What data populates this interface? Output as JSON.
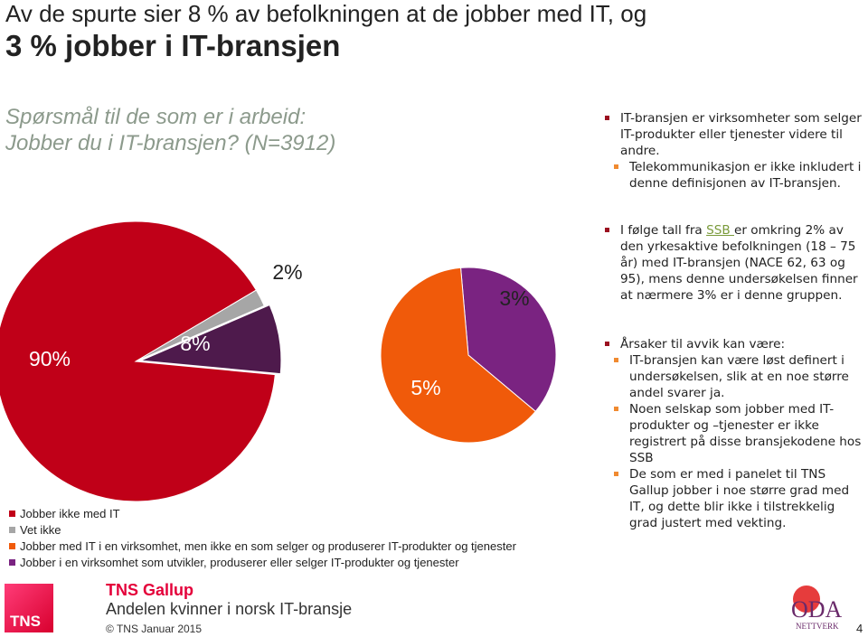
{
  "header": {
    "title_line1": "Av de spurte sier 8 % av befolkningen at de jobber med IT, og",
    "title_line2": "3 % jobber i IT-bransjen",
    "question_line1": "Spørsmål til de som er i arbeid:",
    "question_line2": "Jobber du i IT-bransjen? (N=3912)"
  },
  "chart_data": {
    "type": "pie",
    "categories": [
      "Jobber ikke med IT",
      "Vet ikke",
      "Jobber med IT i en virksomhet, men ikke en som selger og produserer IT-produkter og tjenester",
      "Jobber i en virksomhet som utvikler, produserer eller selger  IT-produkter og tjenester"
    ],
    "values": [
      90,
      2,
      5,
      3
    ],
    "value_labels": [
      "90%",
      "2%",
      "5%",
      "3%"
    ],
    "colors": [
      "#c00018",
      "#a6a6a6",
      "#f05a0a",
      "#7a2381"
    ],
    "group": {
      "value": 8,
      "label": "8%",
      "color": "#4e1a4c"
    }
  },
  "notes": [
    {
      "text": "IT-bransjen er virksomheter som selger IT-produkter eller tjenester videre til andre.",
      "sub": [
        "Telekommunikasjon er ikke inkludert i denne definisjonen av IT-bransjen."
      ]
    },
    {
      "text_before": "I følge tall fra ",
      "link": "SSB ",
      "text_after": "er omkring 2% av den yrkesaktive befolkningen (18 – 75 år) med IT-bransjen (NACE 62, 63 og 95), mens denne undersøkelsen finner at nærmere 3% er i denne gruppen."
    },
    {
      "text": "Årsaker til avvik kan være:",
      "sub": [
        "IT-bransjen kan være løst definert i undersøkelsen, slik at en noe større andel svarer ja.",
        "Noen selskap som jobber med IT-produkter og –tjenester er ikke registrert på disse bransjekodene hos SSB",
        "De som er med i panelet til TNS Gallup jobber i noe større grad med IT, og dette blir ikke i tilstrekkelig grad justert med vekting."
      ]
    }
  ],
  "footer": {
    "logo": "TNS",
    "brand": "TNS Gallup",
    "project": "Andelen kvinner i norsk IT-bransje",
    "copyright": "© TNS Januar 2015",
    "partner_logo": "ODA",
    "partner_sub": "NETTVERK",
    "page": 4
  }
}
